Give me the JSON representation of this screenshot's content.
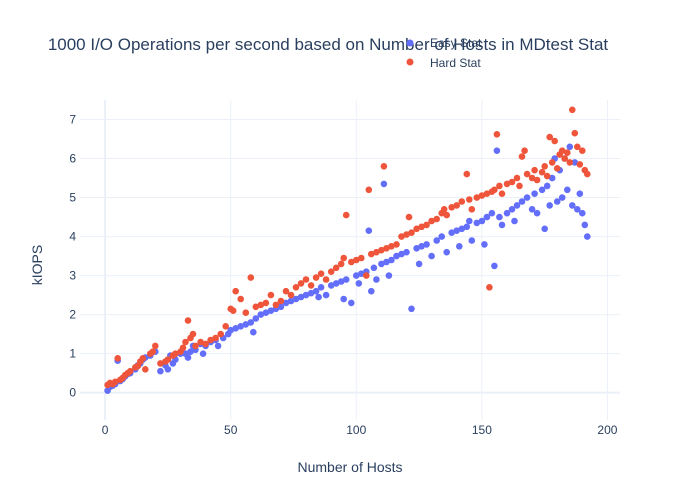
{
  "chart_data": {
    "type": "scatter",
    "title": "1000 I/O Operations per second based on Number of Hosts in MDtest Stat",
    "xlabel": "Number of Hosts",
    "ylabel": "kIOPS",
    "xlim": [
      -10,
      205
    ],
    "ylim": [
      -0.7,
      7.5
    ],
    "x_ticks": [
      0,
      50,
      100,
      150,
      200
    ],
    "y_ticks": [
      0,
      1,
      2,
      3,
      4,
      5,
      6,
      7
    ],
    "grid": true,
    "legend_position": "top-right",
    "series": [
      {
        "name": "Easy Stat",
        "color": "#636efa",
        "points": [
          [
            1,
            0.05
          ],
          [
            2,
            0.15
          ],
          [
            3,
            0.18
          ],
          [
            4,
            0.22
          ],
          [
            5,
            0.82
          ],
          [
            6,
            0.3
          ],
          [
            7,
            0.35
          ],
          [
            8,
            0.42
          ],
          [
            9,
            0.48
          ],
          [
            10,
            0.5
          ],
          [
            12,
            0.6
          ],
          [
            13,
            0.7
          ],
          [
            14,
            0.75
          ],
          [
            15,
            0.85
          ],
          [
            16,
            0.9
          ],
          [
            18,
            0.95
          ],
          [
            20,
            1.05
          ],
          [
            22,
            0.55
          ],
          [
            24,
            0.7
          ],
          [
            25,
            0.6
          ],
          [
            26,
            0.95
          ],
          [
            27,
            0.75
          ],
          [
            28,
            0.85
          ],
          [
            30,
            1.0
          ],
          [
            32,
            1.0
          ],
          [
            33,
            0.9
          ],
          [
            34,
            1.05
          ],
          [
            35,
            1.2
          ],
          [
            36,
            1.1
          ],
          [
            38,
            1.25
          ],
          [
            39,
            1.0
          ],
          [
            40,
            1.2
          ],
          [
            42,
            1.3
          ],
          [
            44,
            1.35
          ],
          [
            45,
            1.2
          ],
          [
            47,
            1.4
          ],
          [
            49,
            1.5
          ],
          [
            50,
            1.6
          ],
          [
            52,
            1.65
          ],
          [
            54,
            1.7
          ],
          [
            56,
            1.75
          ],
          [
            58,
            1.8
          ],
          [
            59,
            1.55
          ],
          [
            60,
            1.9
          ],
          [
            62,
            2.0
          ],
          [
            64,
            2.05
          ],
          [
            66,
            2.1
          ],
          [
            68,
            2.15
          ],
          [
            70,
            2.2
          ],
          [
            72,
            2.3
          ],
          [
            74,
            2.35
          ],
          [
            76,
            2.4
          ],
          [
            78,
            2.45
          ],
          [
            80,
            2.5
          ],
          [
            82,
            2.55
          ],
          [
            84,
            2.6
          ],
          [
            85,
            2.45
          ],
          [
            86,
            2.7
          ],
          [
            88,
            2.5
          ],
          [
            90,
            2.75
          ],
          [
            92,
            2.8
          ],
          [
            94,
            2.85
          ],
          [
            95,
            2.4
          ],
          [
            96,
            2.9
          ],
          [
            98,
            2.3
          ],
          [
            100,
            3.0
          ],
          [
            101,
            2.8
          ],
          [
            102,
            3.05
          ],
          [
            104,
            3.1
          ],
          [
            105,
            4.15
          ],
          [
            106,
            2.6
          ],
          [
            107,
            3.2
          ],
          [
            108,
            2.9
          ],
          [
            110,
            3.3
          ],
          [
            111,
            5.35
          ],
          [
            112,
            3.35
          ],
          [
            113,
            3.0
          ],
          [
            114,
            3.4
          ],
          [
            116,
            3.5
          ],
          [
            118,
            3.55
          ],
          [
            120,
            3.6
          ],
          [
            122,
            2.15
          ],
          [
            124,
            3.7
          ],
          [
            125,
            3.3
          ],
          [
            126,
            3.75
          ],
          [
            128,
            3.8
          ],
          [
            130,
            3.5
          ],
          [
            132,
            3.9
          ],
          [
            134,
            4.0
          ],
          [
            136,
            3.6
          ],
          [
            138,
            4.1
          ],
          [
            140,
            4.15
          ],
          [
            141,
            3.75
          ],
          [
            142,
            4.2
          ],
          [
            144,
            4.25
          ],
          [
            145,
            4.4
          ],
          [
            146,
            3.9
          ],
          [
            148,
            4.35
          ],
          [
            150,
            4.4
          ],
          [
            151,
            3.8
          ],
          [
            152,
            4.5
          ],
          [
            154,
            4.6
          ],
          [
            155,
            3.25
          ],
          [
            156,
            6.2
          ],
          [
            157,
            4.5
          ],
          [
            158,
            4.3
          ],
          [
            160,
            4.6
          ],
          [
            162,
            4.7
          ],
          [
            163,
            4.4
          ],
          [
            164,
            4.8
          ],
          [
            166,
            4.9
          ],
          [
            168,
            5.0
          ],
          [
            170,
            4.7
          ],
          [
            171,
            5.1
          ],
          [
            172,
            4.6
          ],
          [
            174,
            5.2
          ],
          [
            175,
            4.2
          ],
          [
            176,
            5.3
          ],
          [
            177,
            4.8
          ],
          [
            178,
            5.5
          ],
          [
            179,
            6.0
          ],
          [
            180,
            4.9
          ],
          [
            181,
            5.7
          ],
          [
            182,
            5.0
          ],
          [
            183,
            6.0
          ],
          [
            184,
            5.2
          ],
          [
            185,
            6.3
          ],
          [
            186,
            4.8
          ],
          [
            187,
            5.9
          ],
          [
            188,
            4.7
          ],
          [
            189,
            5.1
          ],
          [
            190,
            4.6
          ],
          [
            191,
            4.3
          ],
          [
            192,
            4.0
          ]
        ]
      },
      {
        "name": "Hard Stat",
        "color": "#ef553b",
        "points": [
          [
            1,
            0.2
          ],
          [
            2,
            0.25
          ],
          [
            3,
            0.22
          ],
          [
            4,
            0.28
          ],
          [
            5,
            0.88
          ],
          [
            6,
            0.33
          ],
          [
            7,
            0.38
          ],
          [
            8,
            0.45
          ],
          [
            9,
            0.5
          ],
          [
            10,
            0.55
          ],
          [
            12,
            0.65
          ],
          [
            13,
            0.68
          ],
          [
            14,
            0.8
          ],
          [
            15,
            0.88
          ],
          [
            16,
            0.6
          ],
          [
            18,
            1.0
          ],
          [
            19,
            1.05
          ],
          [
            20,
            1.2
          ],
          [
            22,
            0.75
          ],
          [
            24,
            0.8
          ],
          [
            25,
            0.85
          ],
          [
            27,
            0.95
          ],
          [
            28,
            1.0
          ],
          [
            30,
            1.05
          ],
          [
            31,
            1.15
          ],
          [
            32,
            1.3
          ],
          [
            33,
            1.85
          ],
          [
            34,
            1.4
          ],
          [
            35,
            1.5
          ],
          [
            36,
            1.2
          ],
          [
            38,
            1.3
          ],
          [
            40,
            1.25
          ],
          [
            42,
            1.35
          ],
          [
            44,
            1.4
          ],
          [
            46,
            1.5
          ],
          [
            48,
            1.7
          ],
          [
            50,
            2.15
          ],
          [
            51,
            2.1
          ],
          [
            52,
            2.6
          ],
          [
            54,
            2.4
          ],
          [
            56,
            2.05
          ],
          [
            58,
            2.95
          ],
          [
            60,
            2.2
          ],
          [
            62,
            2.25
          ],
          [
            64,
            2.3
          ],
          [
            66,
            2.5
          ],
          [
            68,
            2.25
          ],
          [
            70,
            2.35
          ],
          [
            72,
            2.6
          ],
          [
            74,
            2.5
          ],
          [
            76,
            2.7
          ],
          [
            78,
            2.8
          ],
          [
            80,
            2.9
          ],
          [
            82,
            2.75
          ],
          [
            84,
            2.95
          ],
          [
            86,
            3.05
          ],
          [
            88,
            2.9
          ],
          [
            90,
            3.1
          ],
          [
            92,
            3.2
          ],
          [
            94,
            3.3
          ],
          [
            95,
            3.45
          ],
          [
            96,
            4.55
          ],
          [
            98,
            3.35
          ],
          [
            100,
            3.4
          ],
          [
            102,
            3.45
          ],
          [
            104,
            3.0
          ],
          [
            105,
            5.2
          ],
          [
            106,
            3.55
          ],
          [
            108,
            3.6
          ],
          [
            110,
            3.65
          ],
          [
            111,
            5.8
          ],
          [
            112,
            3.7
          ],
          [
            114,
            3.75
          ],
          [
            116,
            3.8
          ],
          [
            118,
            4.0
          ],
          [
            120,
            4.05
          ],
          [
            121,
            4.5
          ],
          [
            122,
            4.1
          ],
          [
            124,
            4.2
          ],
          [
            126,
            4.25
          ],
          [
            128,
            4.3
          ],
          [
            130,
            4.4
          ],
          [
            132,
            4.45
          ],
          [
            134,
            4.6
          ],
          [
            135,
            4.7
          ],
          [
            136,
            4.55
          ],
          [
            138,
            4.75
          ],
          [
            140,
            4.8
          ],
          [
            142,
            4.9
          ],
          [
            144,
            5.6
          ],
          [
            145,
            4.95
          ],
          [
            146,
            4.7
          ],
          [
            148,
            5.0
          ],
          [
            150,
            5.05
          ],
          [
            152,
            5.1
          ],
          [
            153,
            2.7
          ],
          [
            154,
            5.15
          ],
          [
            155,
            5.2
          ],
          [
            156,
            6.62
          ],
          [
            157,
            5.3
          ],
          [
            158,
            5.1
          ],
          [
            160,
            5.35
          ],
          [
            162,
            5.4
          ],
          [
            164,
            5.5
          ],
          [
            165,
            5.3
          ],
          [
            166,
            6.05
          ],
          [
            167,
            6.2
          ],
          [
            168,
            5.6
          ],
          [
            170,
            5.5
          ],
          [
            171,
            5.7
          ],
          [
            172,
            5.45
          ],
          [
            174,
            5.65
          ],
          [
            175,
            5.8
          ],
          [
            176,
            5.55
          ],
          [
            177,
            6.55
          ],
          [
            178,
            5.9
          ],
          [
            179,
            6.45
          ],
          [
            180,
            5.75
          ],
          [
            181,
            6.1
          ],
          [
            182,
            6.2
          ],
          [
            183,
            6.0
          ],
          [
            184,
            6.15
          ],
          [
            185,
            5.9
          ],
          [
            186,
            7.25
          ],
          [
            187,
            6.65
          ],
          [
            188,
            6.3
          ],
          [
            189,
            5.85
          ],
          [
            190,
            6.2
          ],
          [
            191,
            5.7
          ],
          [
            192,
            5.6
          ]
        ]
      }
    ]
  }
}
